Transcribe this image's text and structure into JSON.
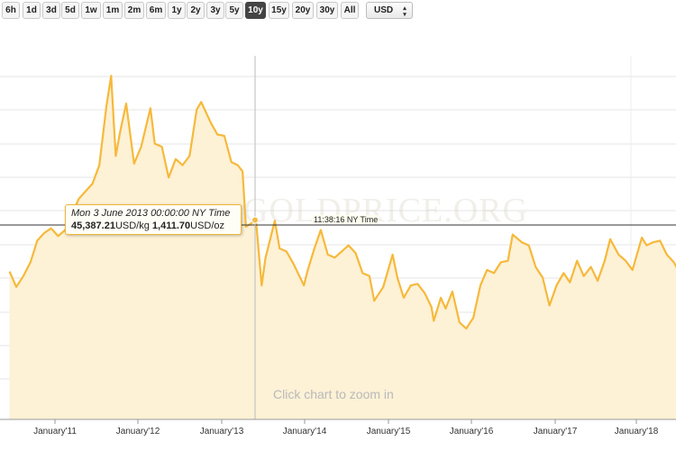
{
  "toolbar": {
    "ranges": [
      "6h",
      "1d",
      "3d",
      "5d",
      "1w",
      "1m",
      "2m",
      "6m",
      "1y",
      "2y",
      "3y",
      "5y",
      "10y",
      "15y",
      "20y",
      "30y",
      "All"
    ],
    "active_range": "10y",
    "currency": "USD"
  },
  "tooltip": {
    "date": "Mon 3 June 2013 00:00:00 NY Time",
    "per_kg_value": "45,387.21",
    "per_kg_unit": "USD/kg",
    "per_oz_value": "1,411.70",
    "per_oz_unit": "USD/oz"
  },
  "timestamp": "11:38:16 NY Time",
  "zoom_hint": "Click chart to zoom in",
  "watermark": "GOLDPRICE.ORG",
  "colors": {
    "line": "#f6b93b",
    "fill": "#fdf1d6",
    "active": "#444444",
    "grid": "#e6e6e6"
  },
  "chart_data": {
    "type": "area",
    "title": "",
    "xlabel": "",
    "ylabel": "",
    "grid": true,
    "x_ticks": [
      "January'11",
      "January'12",
      "January'13",
      "January'14",
      "January'15",
      "January'16",
      "January'17",
      "January'18"
    ],
    "series": [
      {
        "values": [
          [
            "2010-06-15",
            1245
          ],
          [
            "2010-07-15",
            1195
          ],
          [
            "2010-08-15",
            1230
          ],
          [
            "2010-09-15",
            1275
          ],
          [
            "2010-10-15",
            1345
          ],
          [
            "2010-11-15",
            1370
          ],
          [
            "2010-12-15",
            1385
          ],
          [
            "2011-01-15",
            1360
          ],
          [
            "2011-02-15",
            1380
          ],
          [
            "2011-03-15",
            1425
          ],
          [
            "2011-04-15",
            1480
          ],
          [
            "2011-05-15",
            1505
          ],
          [
            "2011-06-15",
            1530
          ],
          [
            "2011-07-15",
            1590
          ],
          [
            "2011-08-15",
            1780
          ],
          [
            "2011-09-05",
            1880
          ],
          [
            "2011-09-25",
            1620
          ],
          [
            "2011-10-15",
            1700
          ],
          [
            "2011-11-10",
            1790
          ],
          [
            "2011-12-15",
            1595
          ],
          [
            "2012-01-15",
            1650
          ],
          [
            "2012-02-25",
            1775
          ],
          [
            "2012-03-15",
            1660
          ],
          [
            "2012-04-15",
            1650
          ],
          [
            "2012-05-15",
            1550
          ],
          [
            "2012-06-15",
            1610
          ],
          [
            "2012-07-15",
            1590
          ],
          [
            "2012-08-15",
            1620
          ],
          [
            "2012-09-15",
            1770
          ],
          [
            "2012-10-05",
            1795
          ],
          [
            "2012-11-15",
            1730
          ],
          [
            "2012-12-15",
            1690
          ],
          [
            "2013-01-15",
            1685
          ],
          [
            "2013-02-15",
            1600
          ],
          [
            "2013-03-15",
            1590
          ],
          [
            "2013-04-05",
            1570
          ],
          [
            "2013-04-20",
            1390
          ],
          [
            "2013-06-03",
            1412
          ],
          [
            "2013-06-28",
            1200
          ],
          [
            "2013-07-15",
            1290
          ],
          [
            "2013-08-25",
            1410
          ],
          [
            "2013-09-15",
            1320
          ],
          [
            "2013-10-15",
            1310
          ],
          [
            "2013-11-15",
            1270
          ],
          [
            "2013-12-31",
            1200
          ],
          [
            "2014-01-15",
            1245
          ],
          [
            "2014-02-15",
            1320
          ],
          [
            "2014-03-15",
            1380
          ],
          [
            "2014-04-15",
            1300
          ],
          [
            "2014-05-15",
            1290
          ],
          [
            "2014-06-15",
            1310
          ],
          [
            "2014-07-15",
            1330
          ],
          [
            "2014-08-15",
            1305
          ],
          [
            "2014-09-15",
            1240
          ],
          [
            "2014-10-15",
            1230
          ],
          [
            "2014-11-05",
            1150
          ],
          [
            "2014-12-15",
            1195
          ],
          [
            "2015-01-25",
            1300
          ],
          [
            "2015-02-15",
            1225
          ],
          [
            "2015-03-15",
            1160
          ],
          [
            "2015-04-15",
            1200
          ],
          [
            "2015-05-15",
            1205
          ],
          [
            "2015-06-15",
            1175
          ],
          [
            "2015-07-15",
            1130
          ],
          [
            "2015-07-25",
            1085
          ],
          [
            "2015-08-25",
            1160
          ],
          [
            "2015-09-15",
            1125
          ],
          [
            "2015-10-15",
            1180
          ],
          [
            "2015-11-15",
            1080
          ],
          [
            "2015-12-15",
            1060
          ],
          [
            "2016-01-15",
            1095
          ],
          [
            "2016-02-15",
            1200
          ],
          [
            "2016-03-15",
            1250
          ],
          [
            "2016-04-15",
            1240
          ],
          [
            "2016-05-15",
            1275
          ],
          [
            "2016-06-15",
            1280
          ],
          [
            "2016-07-06",
            1365
          ],
          [
            "2016-08-15",
            1340
          ],
          [
            "2016-09-15",
            1330
          ],
          [
            "2016-10-15",
            1260
          ],
          [
            "2016-11-15",
            1225
          ],
          [
            "2016-12-15",
            1135
          ],
          [
            "2017-01-15",
            1200
          ],
          [
            "2017-02-15",
            1240
          ],
          [
            "2017-03-15",
            1210
          ],
          [
            "2017-04-15",
            1280
          ],
          [
            "2017-05-15",
            1230
          ],
          [
            "2017-06-15",
            1260
          ],
          [
            "2017-07-15",
            1215
          ],
          [
            "2017-08-15",
            1280
          ],
          [
            "2017-09-08",
            1350
          ],
          [
            "2017-10-15",
            1300
          ],
          [
            "2017-11-15",
            1280
          ],
          [
            "2017-12-15",
            1250
          ],
          [
            "2018-01-25",
            1355
          ],
          [
            "2018-02-15",
            1330
          ],
          [
            "2018-03-15",
            1340
          ],
          [
            "2018-04-15",
            1345
          ],
          [
            "2018-05-15",
            1300
          ],
          [
            "2018-06-15",
            1275
          ],
          [
            "2018-07-15",
            1235
          ]
        ]
      }
    ]
  }
}
